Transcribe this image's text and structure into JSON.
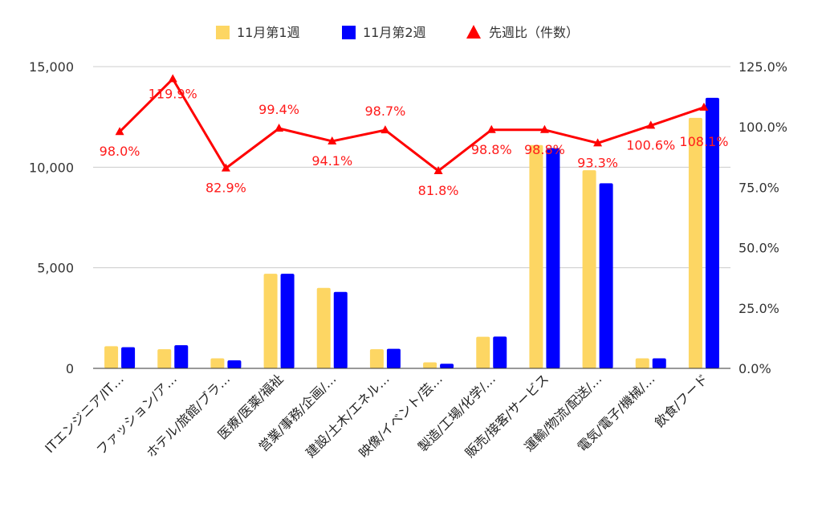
{
  "chart_data": {
    "type": "bar",
    "categories": [
      "ITエンジニア/IT…",
      "ファッション/ア…",
      "ホテル/旅館/ブラ…",
      "医療/医薬/福祉",
      "営業/事務/企画/…",
      "建設/土木/エネル…",
      "映像/イベント/芸…",
      "製造/工場/化学/…",
      "販売/接客/サービス",
      "運輸/物流/配送/…",
      "電気/電子/機械/…",
      "飲食/フード"
    ],
    "series": [
      {
        "name": "11月第1週",
        "type": "bar",
        "axis": "left",
        "color": "#fdd663",
        "values": [
          1100,
          950,
          500,
          4700,
          4000,
          950,
          300,
          1570,
          11100,
          9850,
          500,
          12450
        ]
      },
      {
        "name": "11月第2週",
        "type": "bar",
        "axis": "left",
        "color": "#0000ff",
        "values": [
          1050,
          1150,
          400,
          4700,
          3800,
          970,
          230,
          1580,
          10950,
          9200,
          500,
          13450
        ]
      },
      {
        "name": "先週比（件数）",
        "type": "line",
        "axis": "right",
        "color": "#ff0000",
        "values": [
          98.0,
          119.9,
          82.9,
          99.4,
          94.1,
          98.7,
          81.8,
          98.8,
          98.8,
          93.3,
          100.6,
          108.1
        ],
        "labels": [
          "98.0%",
          "119.9%",
          "82.9%",
          "99.4%",
          "94.1%",
          "98.7%",
          "81.8%",
          "98.8%",
          "98.8%",
          "93.3%",
          "100.6%",
          "108.1%"
        ]
      }
    ],
    "y_left": {
      "min": 0,
      "max": 15000,
      "ticks": [
        "0",
        "5,000",
        "10,000",
        "15,000"
      ],
      "tick_values": [
        0,
        5000,
        10000,
        15000
      ]
    },
    "y_right": {
      "min": 0,
      "max": 125,
      "ticks": [
        "0.0%",
        "25.0%",
        "50.0%",
        "75.0%",
        "100.0%",
        "125.0%"
      ],
      "tick_values": [
        0,
        25,
        50,
        75,
        100,
        125
      ]
    },
    "grid": true,
    "legend_position": "top-center"
  }
}
